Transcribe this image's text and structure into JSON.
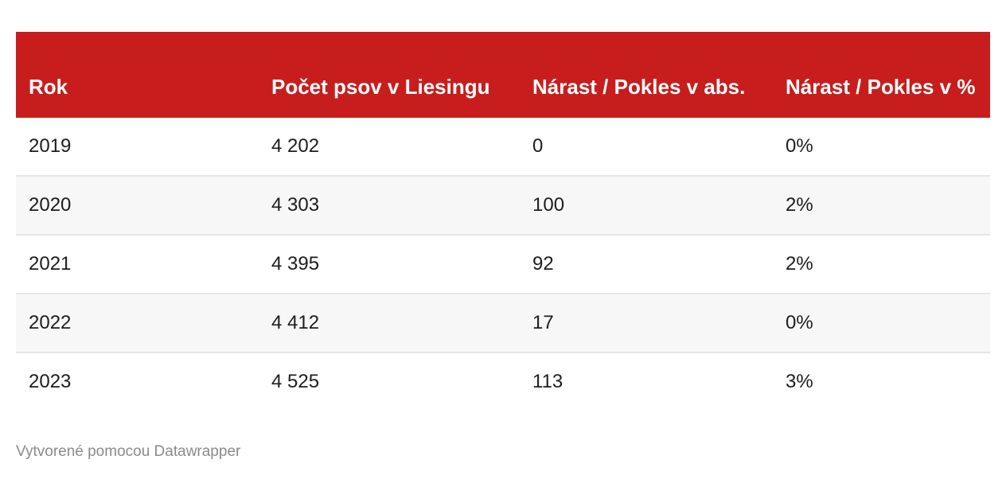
{
  "table": {
    "headers": [
      "Rok",
      "Počet psov v Liesingu",
      "Nárast / Pokles v abs.",
      "Nárast / Pokles v %"
    ],
    "rows": [
      [
        "2019",
        "4 202",
        "0",
        "0%"
      ],
      [
        "2020",
        "4 303",
        "100",
        "2%"
      ],
      [
        "2021",
        "4 395",
        "92",
        "2%"
      ],
      [
        "2022",
        "4 412",
        "17",
        "0%"
      ],
      [
        "2023",
        "4 525",
        "113",
        "3%"
      ]
    ],
    "header_color": "#c81d1d",
    "stripe_color": "#f7f7f7"
  },
  "footer": {
    "credit": "Vytvorené pomocou Datawrapper"
  }
}
